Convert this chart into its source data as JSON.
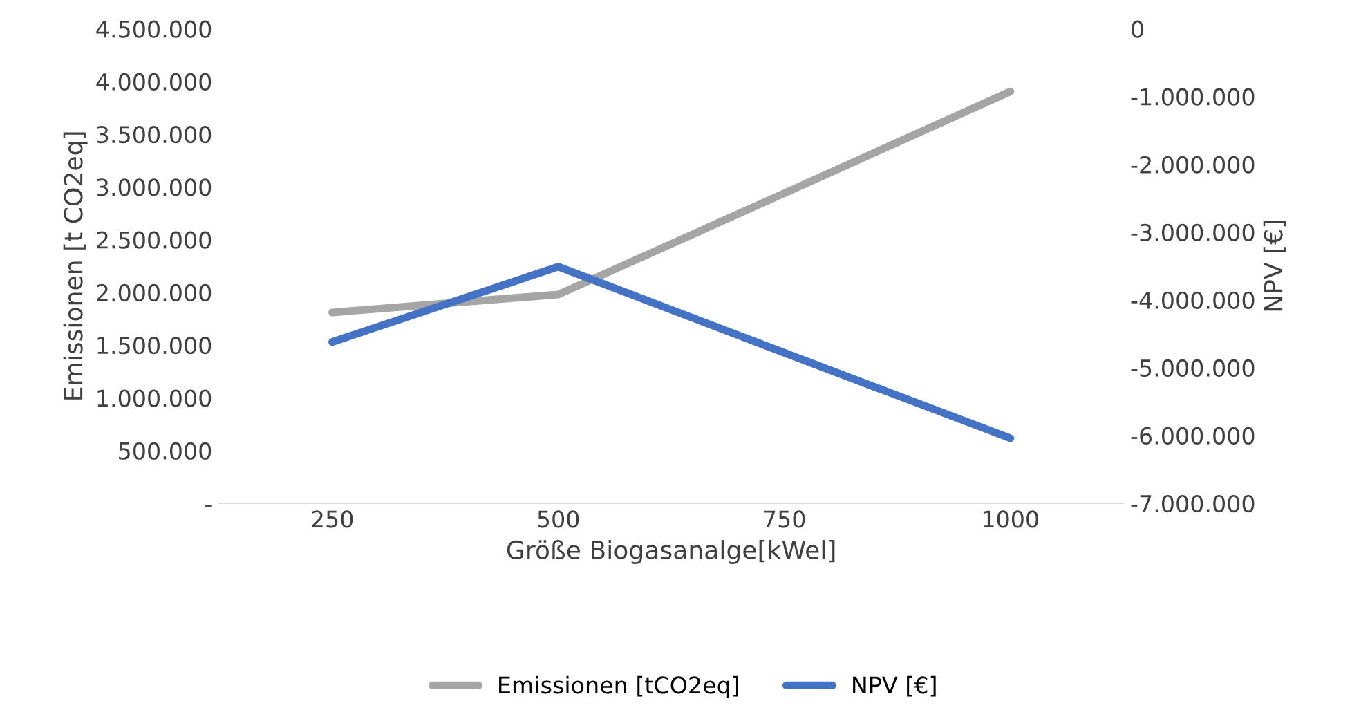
{
  "chart_data": {
    "type": "line",
    "xlabel": "Größe Biogasanalge[kWel]",
    "ylabel": "Emissionen [t CO2eq]",
    "y2label": "NPV [€]",
    "categories": [
      "250",
      "500",
      "750",
      "1000"
    ],
    "series": [
      {
        "name": "Emissionen [tCO2eq]",
        "color": "#a5a5a5",
        "values": [
          1810000,
          1980000,
          2940000,
          3905000
        ]
      },
      {
        "name": "NPV [€]",
        "color": "#4472c4",
        "axis": "y2",
        "values": [
          -4620000,
          -3510000,
          -4780000,
          -6040000
        ]
      }
    ],
    "ylim": [
      0,
      4500000
    ],
    "yticks": [
      {
        "value": 0,
        "label": "-"
      },
      {
        "value": 500000,
        "label": "500.000"
      },
      {
        "value": 1000000,
        "label": "1.000.000"
      },
      {
        "value": 1500000,
        "label": "1.500.000"
      },
      {
        "value": 2000000,
        "label": "2.000.000"
      },
      {
        "value": 2500000,
        "label": "2.500.000"
      },
      {
        "value": 3000000,
        "label": "3.000.000"
      },
      {
        "value": 3500000,
        "label": "3.500.000"
      },
      {
        "value": 4000000,
        "label": "4.000.000"
      },
      {
        "value": 4500000,
        "label": "4.500.000"
      }
    ],
    "y2lim": [
      -7000000,
      0
    ],
    "y2ticks": [
      {
        "value": -7000000,
        "label": "-7.000.000"
      },
      {
        "value": -6000000,
        "label": "-6.000.000"
      },
      {
        "value": -5000000,
        "label": "-5.000.000"
      },
      {
        "value": -4000000,
        "label": "-4.000.000"
      },
      {
        "value": -3000000,
        "label": "-3.000.000"
      },
      {
        "value": -2000000,
        "label": "-2.000.000"
      },
      {
        "value": -1000000,
        "label": "-1.000.000"
      },
      {
        "value": 0,
        "label": "0"
      }
    ],
    "legend": "bottom",
    "grid": false,
    "marker": "none",
    "line_style": "solid"
  }
}
